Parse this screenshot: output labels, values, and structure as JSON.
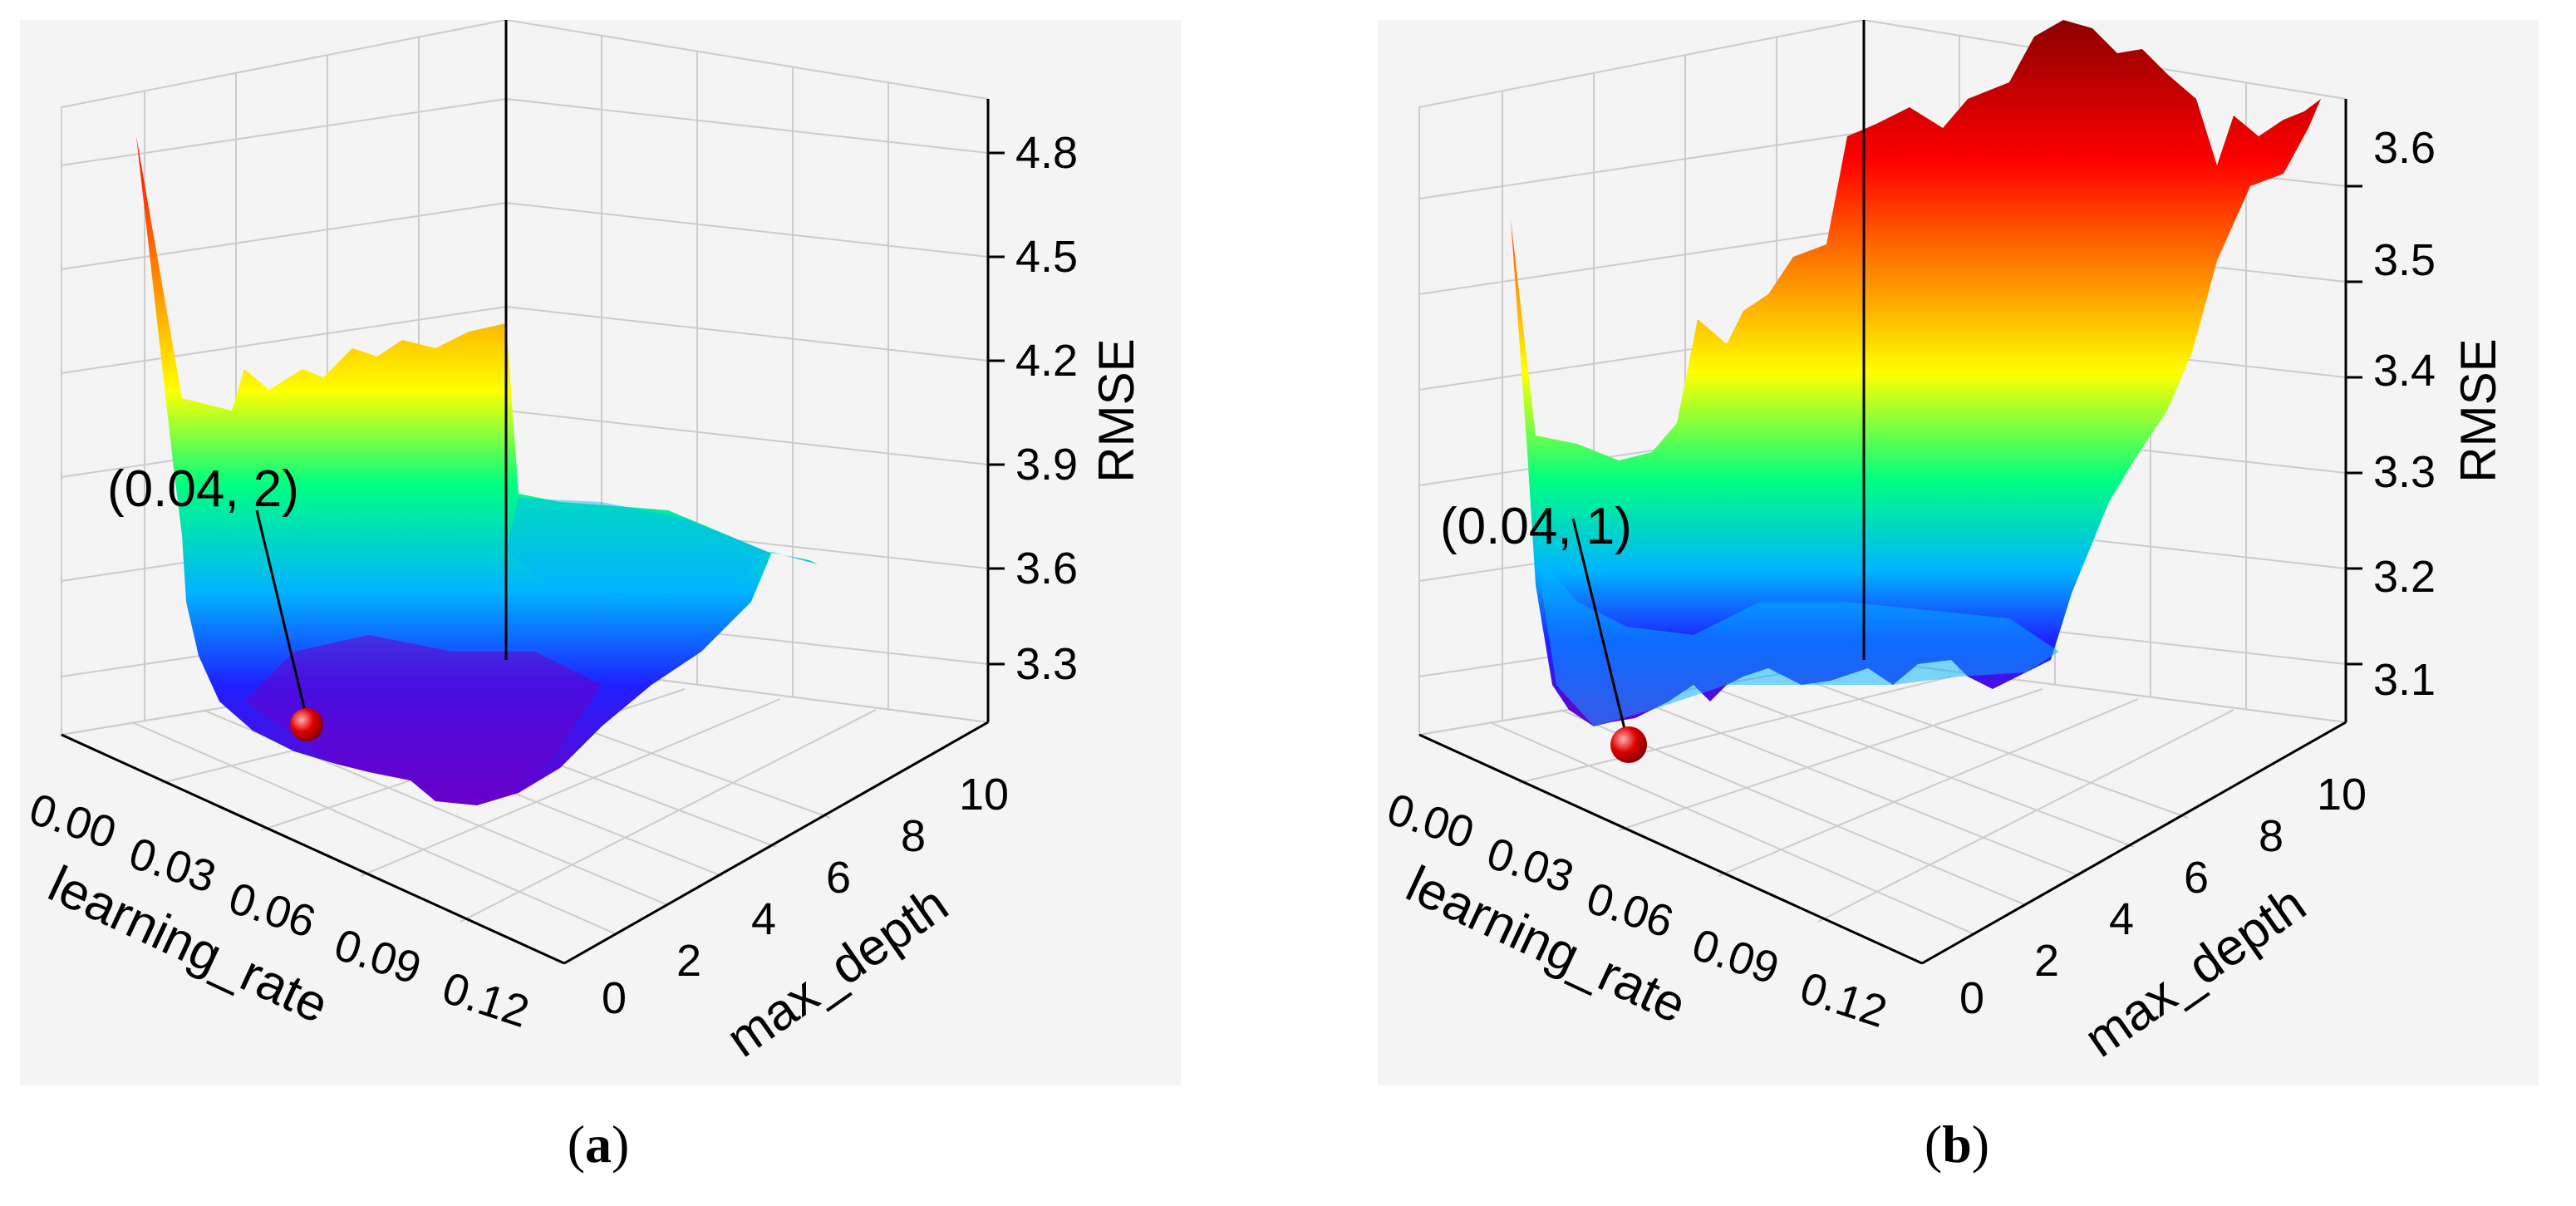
{
  "chart_data": [
    {
      "type": "surface",
      "panel_label": "a",
      "xlabel": "learning_rate",
      "ylabel": "max_depth",
      "zlabel": "RMSE",
      "x_ticks": [
        "0.00",
        "0.03",
        "0.06",
        "0.09",
        "0.12"
      ],
      "y_ticks": [
        "0",
        "2",
        "4",
        "6",
        "8",
        "10"
      ],
      "z_ticks": [
        "3.3",
        "3.6",
        "3.9",
        "4.2",
        "4.5",
        "4.8"
      ],
      "xlim": [
        0,
        0.12
      ],
      "ylim": [
        0,
        10
      ],
      "zlim": [
        3.05,
        4.9
      ],
      "grid": true,
      "colormap": [
        "#6a00c8",
        "#2020ff",
        "#00b4ff",
        "#00ff80",
        "#ffff00",
        "#ff8000",
        "#ff0000"
      ],
      "surface_profile": {
        "learning_rate": [
          0.005,
          0.01,
          0.02,
          0.03,
          0.04,
          0.05,
          0.06,
          0.08,
          0.1,
          0.12
        ],
        "rmse_at_depth_2": [
          4.75,
          3.95,
          3.5,
          3.25,
          3.12,
          3.13,
          3.15,
          3.2,
          3.25,
          3.3
        ],
        "rmse_at_depth_10": [
          4.05,
          4.1,
          4.12,
          4.15,
          3.62,
          3.58,
          3.55,
          3.52,
          3.5,
          3.48
        ]
      },
      "optimum": {
        "label": "(0.04, 2)",
        "learning_rate": 0.04,
        "max_depth": 2,
        "rmse": 3.12
      }
    },
    {
      "type": "surface",
      "panel_label": "b",
      "xlabel": "learning_rate",
      "ylabel": "max_depth",
      "zlabel": "RMSE",
      "x_ticks": [
        "0.00",
        "0.03",
        "0.06",
        "0.09",
        "0.12"
      ],
      "y_ticks": [
        "0",
        "2",
        "4",
        "6",
        "8",
        "10"
      ],
      "z_ticks": [
        "3.1",
        "3.2",
        "3.3",
        "3.4",
        "3.5",
        "3.6"
      ],
      "xlim": [
        0,
        0.12
      ],
      "ylim": [
        0,
        10
      ],
      "zlim": [
        3.05,
        3.65
      ],
      "grid": true,
      "colormap": [
        "#6a00c8",
        "#2020ff",
        "#00b4ff",
        "#00ff80",
        "#ffff00",
        "#ff8000",
        "#ff0000",
        "#8b0000"
      ],
      "surface_profile": {
        "learning_rate": [
          0.005,
          0.01,
          0.02,
          0.03,
          0.04,
          0.05,
          0.06,
          0.08,
          0.1,
          0.12
        ],
        "rmse_at_depth_1": [
          3.52,
          3.25,
          3.18,
          3.1,
          3.08,
          3.12,
          3.15,
          3.2,
          3.22,
          3.25
        ],
        "rmse_at_depth_10": [
          3.4,
          3.42,
          3.45,
          3.5,
          3.55,
          3.62,
          3.63,
          3.6,
          3.58,
          3.55
        ]
      },
      "optimum": {
        "label": "(0.04, 1)",
        "learning_rate": 0.04,
        "max_depth": 1,
        "rmse": 3.08
      }
    }
  ]
}
